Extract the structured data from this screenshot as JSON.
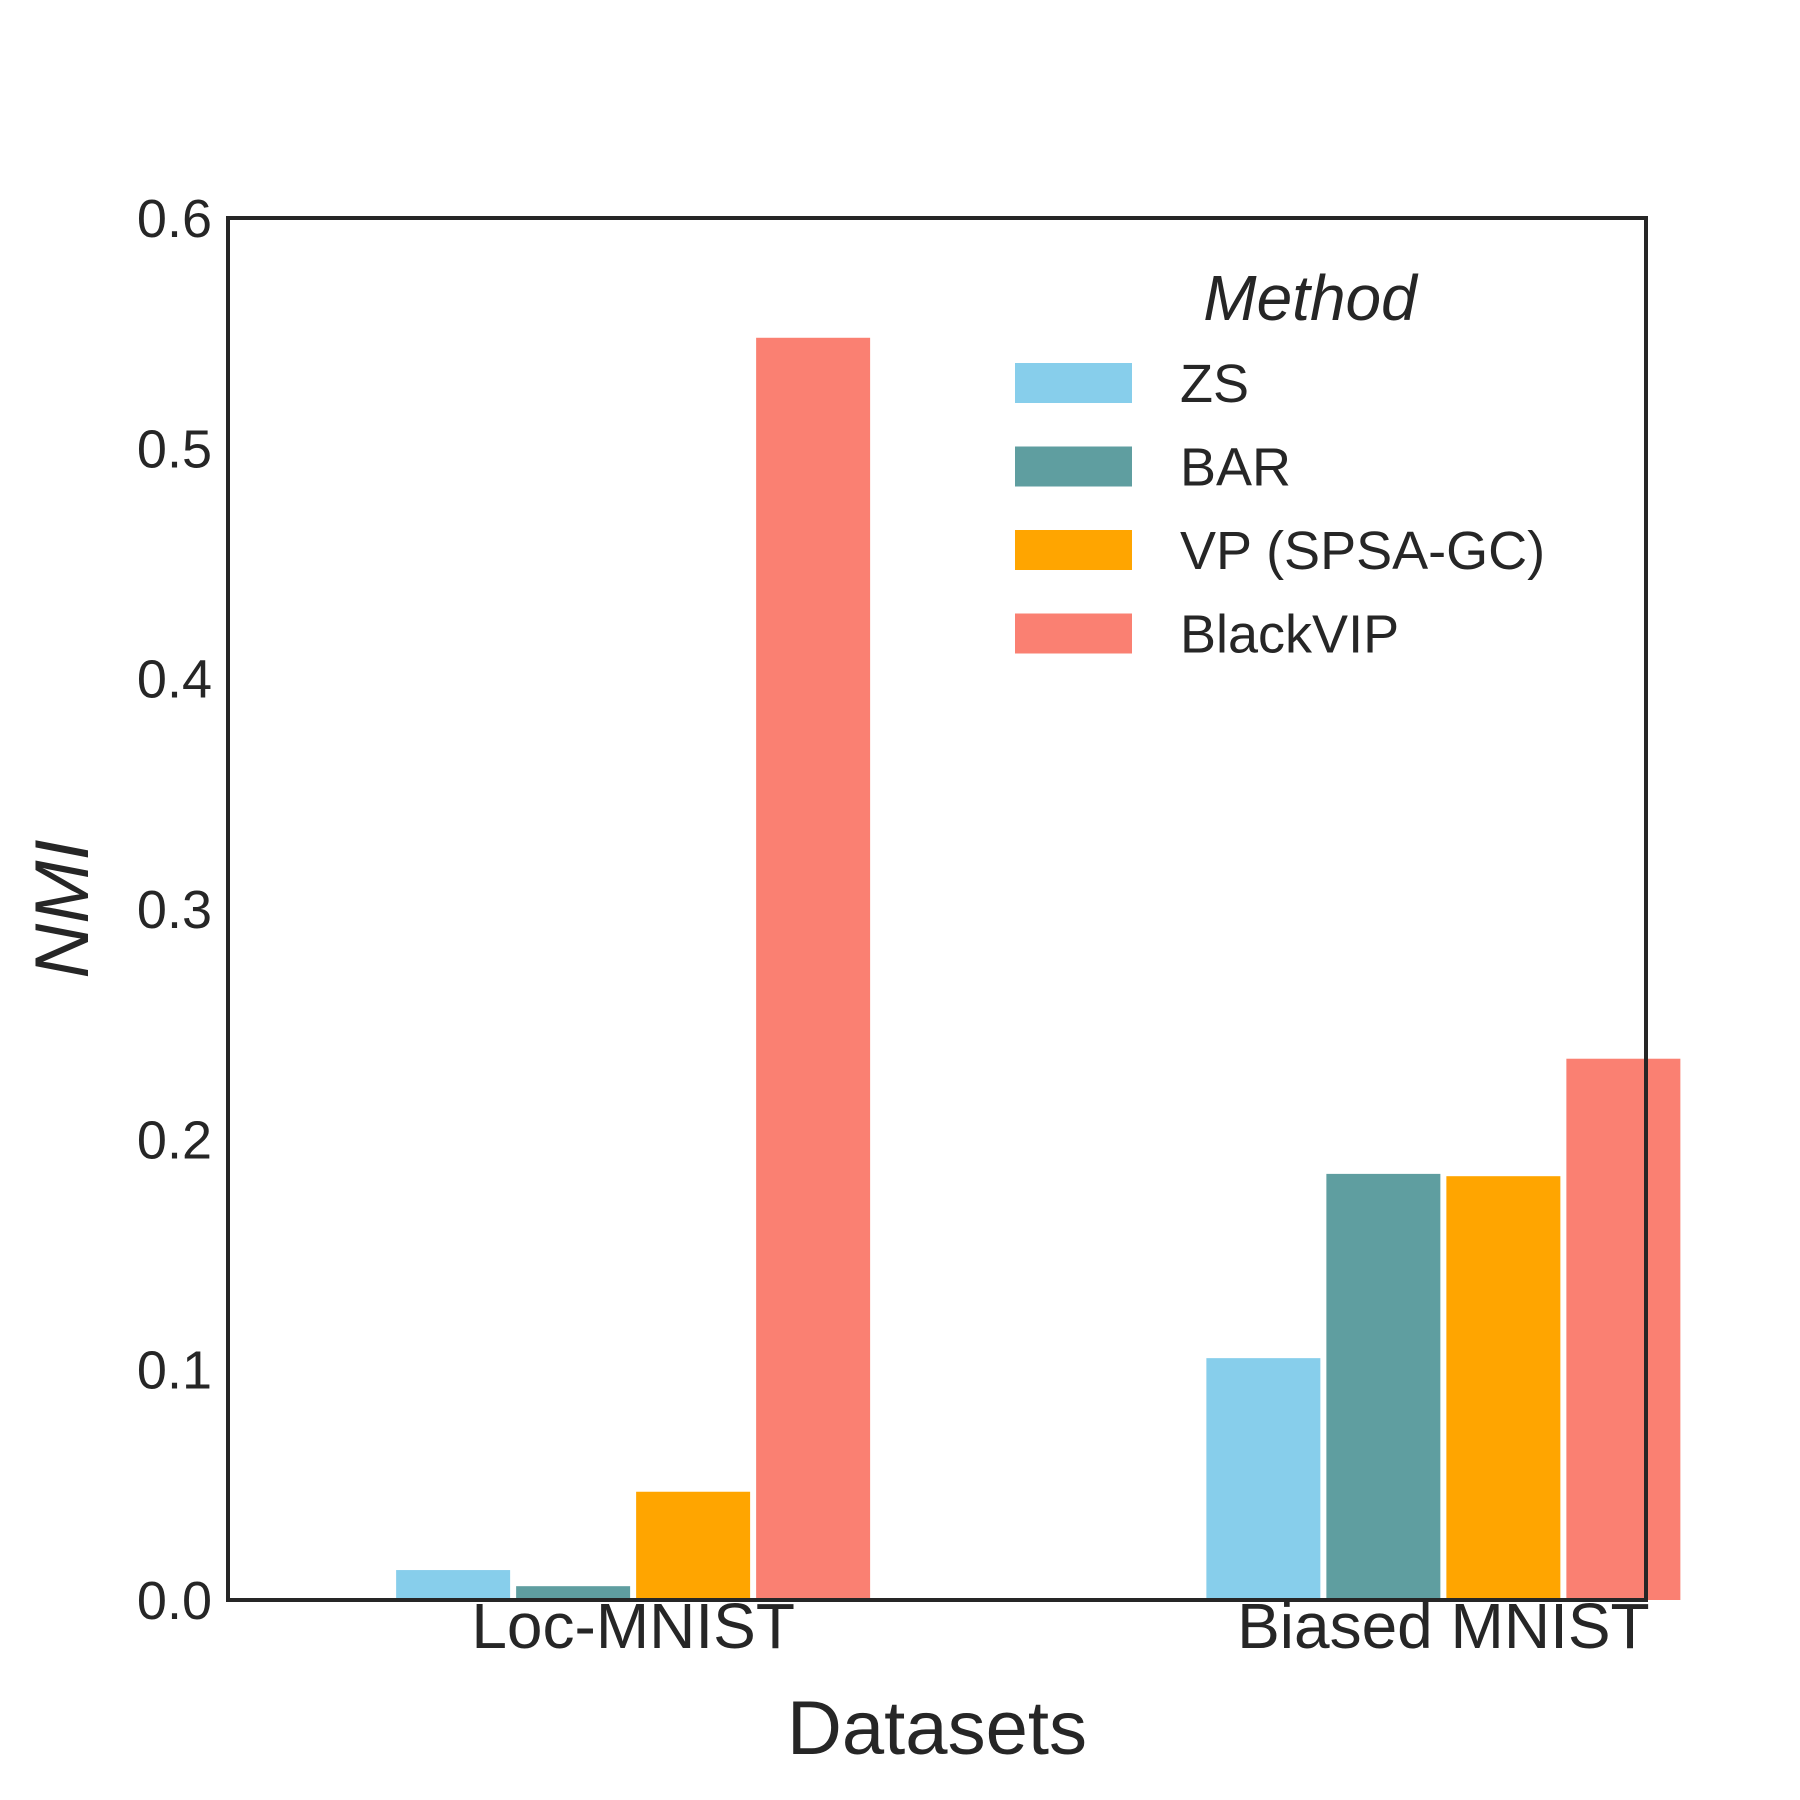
{
  "chart_data": {
    "type": "bar",
    "title": "",
    "xlabel": "Datasets",
    "ylabel": "NMI",
    "ylim": [
      0.0,
      0.6
    ],
    "yticks": [
      "0.0",
      "0.1",
      "0.2",
      "0.3",
      "0.4",
      "0.5",
      "0.6"
    ],
    "grid": false,
    "legend_title": "Method",
    "legend_position": "top-right",
    "categories": [
      "Loc-MNIST",
      "Biased MNIST"
    ],
    "series": [
      {
        "name": "ZS",
        "color": "#87CEEB",
        "values": [
          0.013,
          0.105
        ]
      },
      {
        "name": "BAR",
        "color": "#5F9EA0",
        "values": [
          0.006,
          0.185
        ]
      },
      {
        "name": "VP (SPSA-GC)",
        "color": "#FFA500",
        "values": [
          0.047,
          0.184
        ]
      },
      {
        "name": "BlackVIP",
        "color": "#FA8072",
        "values": [
          0.548,
          0.235
        ]
      }
    ]
  }
}
